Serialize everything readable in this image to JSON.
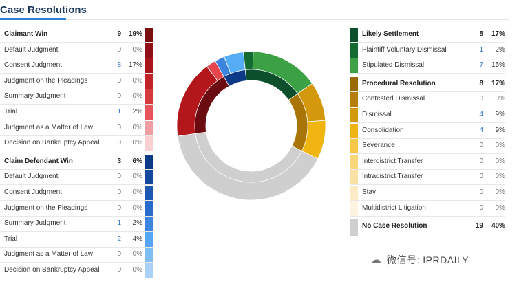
{
  "header": {
    "title": "Case Resolutions"
  },
  "left_table": {
    "groups": [
      {
        "name": "Claimant Win",
        "count": "9",
        "pct": "19%",
        "color": "#7a0f12",
        "items": [
          {
            "label": "Default Judgment",
            "count": "0",
            "pct": "0%",
            "color": "#8f1016"
          },
          {
            "label": "Consent Judgment",
            "count": "8",
            "pct": "17%",
            "color": "#a8161c"
          },
          {
            "label": "Judgment on the Pleadings",
            "count": "0",
            "pct": "0%",
            "color": "#c02228"
          },
          {
            "label": "Summary Judgment",
            "count": "0",
            "pct": "0%",
            "color": "#d43a3e"
          },
          {
            "label": "Trial",
            "count": "1",
            "pct": "2%",
            "color": "#e5545a"
          },
          {
            "label": "Judgment as a Matter of Law",
            "count": "0",
            "pct": "0%",
            "color": "#ee9ea0"
          },
          {
            "label": "Decision on Bankruptcy Appeal",
            "count": "0",
            "pct": "0%",
            "color": "#f8d0d2"
          }
        ]
      },
      {
        "name": "Claim Defendant Win",
        "count": "3",
        "pct": "6%",
        "color": "#0d3a86",
        "items": [
          {
            "label": "Default Judgment",
            "count": "0",
            "pct": "0%",
            "color": "#14489c"
          },
          {
            "label": "Consent Judgment",
            "count": "0",
            "pct": "0%",
            "color": "#1c57b3"
          },
          {
            "label": "Judgment on the Pleadings",
            "count": "0",
            "pct": "0%",
            "color": "#2a6ccc"
          },
          {
            "label": "Summary Judgment",
            "count": "1",
            "pct": "2%",
            "color": "#3d84de"
          },
          {
            "label": "Trial",
            "count": "2",
            "pct": "4%",
            "color": "#55a5f2"
          },
          {
            "label": "Judgment as a Matter of Law",
            "count": "0",
            "pct": "0%",
            "color": "#7fbdf5"
          },
          {
            "label": "Decision on Bankruptcy Appeal",
            "count": "0",
            "pct": "0%",
            "color": "#a9d1f8"
          }
        ]
      }
    ]
  },
  "right_table": {
    "groups": [
      {
        "name": "Likely Settlement",
        "count": "8",
        "pct": "17%",
        "color": "#0b4f2c",
        "items": [
          {
            "label": "Plaintiff Voluntary Dismissal",
            "count": "1",
            "pct": "2%",
            "color": "#136b33"
          },
          {
            "label": "Stipulated Dismissal",
            "count": "7",
            "pct": "15%",
            "color": "#3ca144"
          }
        ]
      },
      {
        "name": "Procedural Resolution",
        "count": "8",
        "pct": "17%",
        "color": "#9a6a05",
        "items": [
          {
            "label": "Contested Dismissal",
            "count": "0",
            "pct": "0%",
            "color": "#b57d0a"
          },
          {
            "label": "Dismissal",
            "count": "4",
            "pct": "9%",
            "color": "#d4980c"
          },
          {
            "label": "Consolidation",
            "count": "4",
            "pct": "9%",
            "color": "#efb414"
          },
          {
            "label": "Severance",
            "count": "0",
            "pct": "0%",
            "color": "#f7c845"
          },
          {
            "label": "Interdistrict Transfer",
            "count": "0",
            "pct": "0%",
            "color": "#f8d77a"
          },
          {
            "label": "Intradistrict Transfer",
            "count": "0",
            "pct": "0%",
            "color": "#f9e2a3"
          },
          {
            "label": "Stay",
            "count": "0",
            "pct": "0%",
            "color": "#fbecc6"
          },
          {
            "label": "Multidistrict Litigation",
            "count": "0",
            "pct": "0%",
            "color": "#fdf4df"
          }
        ]
      },
      {
        "name": "No Case Resolution",
        "count": "19",
        "pct": "40%",
        "color": "#cfcfcf",
        "items": []
      }
    ]
  },
  "chart_data": {
    "type": "pie",
    "title": "",
    "inner_ring": [
      {
        "name": "Claimant Win",
        "value": 9,
        "color": "#6b0d10"
      },
      {
        "name": "Claim Defendant Win",
        "value": 3,
        "color": "#0d3a86"
      },
      {
        "name": "Likely Settlement",
        "value": 8,
        "color": "#0b4f2c"
      },
      {
        "name": "Procedural Resolution",
        "value": 8,
        "color": "#a87506"
      },
      {
        "name": "No Case Resolution",
        "value": 19,
        "color": "#cfcfcf"
      }
    ],
    "outer_ring": [
      {
        "name": "Consent Judgment",
        "value": 8,
        "color": "#b3161b"
      },
      {
        "name": "Trial",
        "value": 1,
        "color": "#e5454b"
      },
      {
        "name": "Summary Judgment",
        "value": 1,
        "color": "#3d84de"
      },
      {
        "name": "Trial",
        "value": 2,
        "color": "#55aef5"
      },
      {
        "name": "Plaintiff Voluntary Dismissal",
        "value": 1,
        "color": "#136b33"
      },
      {
        "name": "Stipulated Dismissal",
        "value": 7,
        "color": "#3ca144"
      },
      {
        "name": "Dismissal",
        "value": 4,
        "color": "#d4980c"
      },
      {
        "name": "Consolidation",
        "value": 4,
        "color": "#f0b510"
      },
      {
        "name": "No Case Resolution",
        "value": 19,
        "color": "#cfcfcf"
      }
    ]
  },
  "watermark": {
    "text": "微信号: IPRDAILY"
  }
}
